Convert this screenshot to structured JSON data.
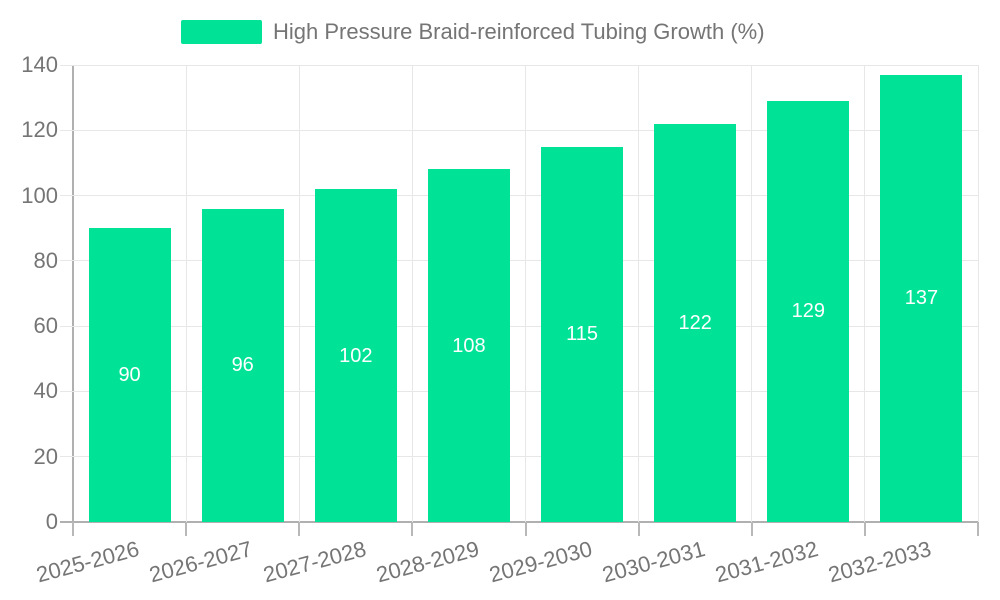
{
  "chart_data": {
    "type": "bar",
    "title": "High Pressure Braid-reinforced Tubing Growth (%)",
    "categories": [
      "2025-2026",
      "2026-2027",
      "2027-2028",
      "2028-2029",
      "2029-2030",
      "2030-2031",
      "2031-2032",
      "2032-2033"
    ],
    "values": [
      90,
      96,
      102,
      108,
      115,
      122,
      129,
      137
    ],
    "xlabel": "",
    "ylabel": "",
    "ylim": [
      0,
      140
    ],
    "yticks": [
      0,
      20,
      40,
      60,
      80,
      100,
      120,
      140
    ],
    "grid": true,
    "legend_position": "top",
    "bar_color": "#00E396",
    "bar_label_color": "#ffffff",
    "axis_text_color": "#757575",
    "grid_color": "#e7e7e7",
    "axis_line_color": "#b0b0b0"
  }
}
